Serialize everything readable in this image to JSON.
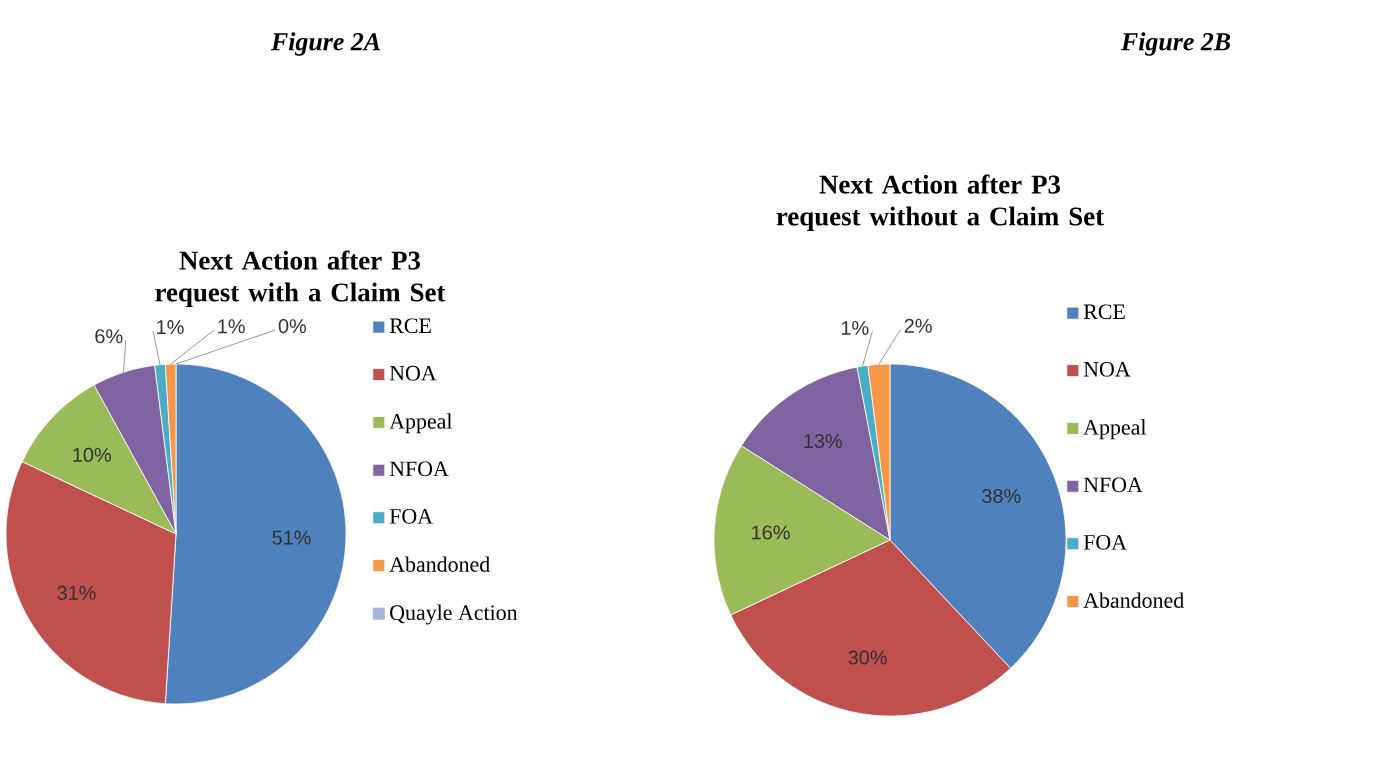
{
  "chart_data": [
    {
      "type": "pie",
      "title": "Next Action after P3 request with a Claim Set",
      "annotations": [
        "Figure 2A"
      ],
      "categories": [
        "RCE",
        "NOA",
        "Appeal",
        "NFOA",
        "FOA",
        "Abandoned",
        "Quayle Action"
      ],
      "values": [
        51,
        31,
        10,
        6,
        1,
        1,
        0
      ],
      "value_labels": [
        "51%",
        "31%",
        "10%",
        "6%",
        "1%",
        "1%",
        "0%"
      ],
      "colors": [
        "#4f81bd",
        "#c0504d",
        "#9bbb59",
        "#8064a2",
        "#4bacc6",
        "#f79646",
        "#a5b8dc"
      ],
      "legend": "right"
    },
    {
      "type": "pie",
      "title": "Next Action after P3 request without a Claim Set",
      "annotations": [
        "Figure 2B"
      ],
      "categories": [
        "RCE",
        "NOA",
        "Appeal",
        "NFOA",
        "FOA",
        "Abandoned"
      ],
      "values": [
        38,
        30,
        16,
        13,
        1,
        2
      ],
      "value_labels": [
        "38%",
        "30%",
        "16%",
        "13%",
        "1%",
        "2%"
      ],
      "colors": [
        "#4f81bd",
        "#c0504d",
        "#9bbb59",
        "#8064a2",
        "#4bacc6",
        "#f79646"
      ],
      "legend": "right"
    }
  ]
}
